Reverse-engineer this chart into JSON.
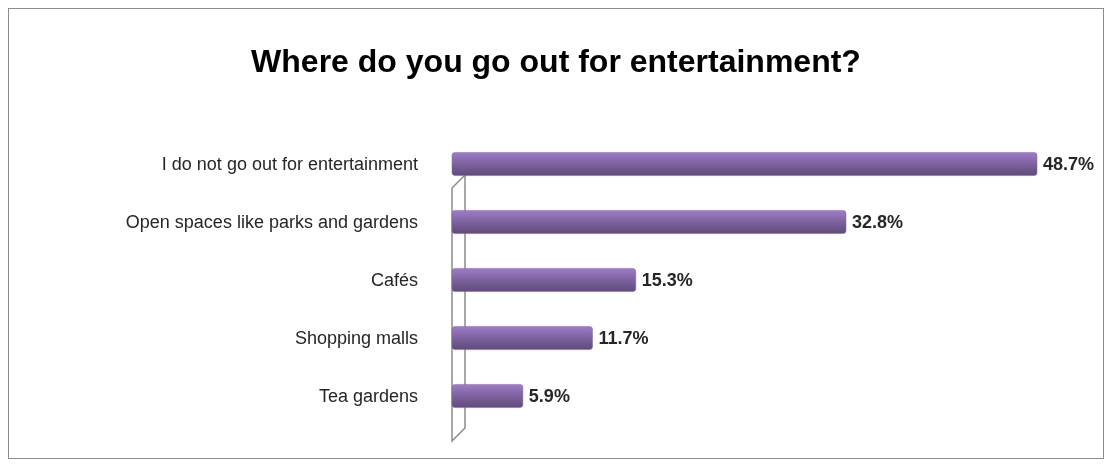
{
  "chart_data": {
    "type": "bar",
    "orientation": "horizontal",
    "title": "Where do you go out for entertainment?",
    "categories": [
      "I do not go out for entertainment",
      "Open spaces like parks and gardens",
      "Cafés",
      "Shopping malls",
      "Tea gardens"
    ],
    "values": [
      48.7,
      32.8,
      15.3,
      11.7,
      5.9
    ],
    "value_labels": [
      "48.7%",
      "32.8%",
      "15.3%",
      "11.7%",
      "5.9%"
    ],
    "color": "#8064a2",
    "grid": false
  }
}
